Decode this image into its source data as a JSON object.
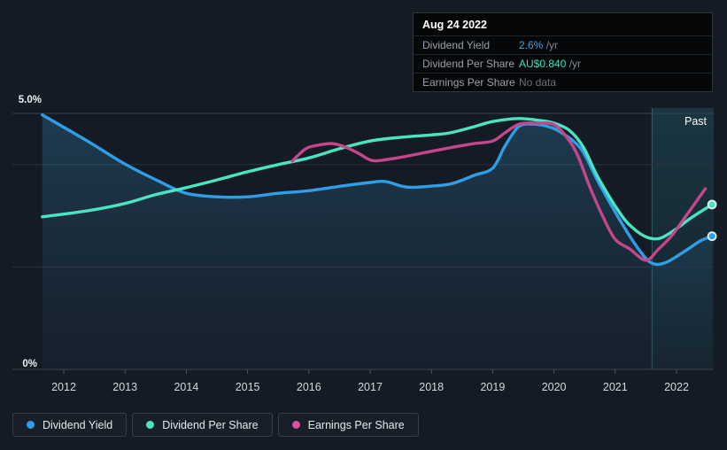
{
  "page": {
    "background": "#151b24"
  },
  "tooltip": {
    "date": "Aug 24 2022",
    "rows": [
      {
        "label": "Dividend Yield",
        "value": "2.6%",
        "suffix": " /yr",
        "value_color": "#3aa5f0"
      },
      {
        "label": "Dividend Per Share",
        "value": "AU$0.840",
        "suffix": " /yr",
        "value_color": "#41e0bd"
      },
      {
        "label": "Earnings Per Share",
        "value": "No data",
        "suffix": "",
        "value_color": "#6a7077"
      }
    ]
  },
  "axis": {
    "y_top_label": "5.0%",
    "y_bottom_label": "0%",
    "years": [
      "2012",
      "2013",
      "2014",
      "2015",
      "2016",
      "2017",
      "2018",
      "2019",
      "2020",
      "2021",
      "2022"
    ],
    "past_label": "Past"
  },
  "legend": [
    {
      "label": "Dividend Yield",
      "color": "#2f9ee8"
    },
    {
      "label": "Dividend Per Share",
      "color": "#4be4c2"
    },
    {
      "label": "Earnings Per Share",
      "color": "#d9509f"
    }
  ],
  "chart_data": {
    "type": "line",
    "title": "Dividend history",
    "x_unit": "year",
    "y_unit": "percent (dividend-yield axis)",
    "xlim": [
      2011.16,
      2022.61
    ],
    "ylim": [
      0,
      5
    ],
    "grid_values": [
      5,
      4,
      2,
      0
    ],
    "past_region_start": 2021.6,
    "legend_position": "bottom-left",
    "series": [
      {
        "name": "Dividend Yield",
        "color": "#2f9ee8",
        "area_fill": true,
        "end_dot": true,
        "points": [
          [
            2011.65,
            4.97
          ],
          [
            2012.4,
            4.45
          ],
          [
            2013,
            4.01
          ],
          [
            2013.56,
            3.67
          ],
          [
            2014,
            3.44
          ],
          [
            2014.5,
            3.37
          ],
          [
            2015,
            3.37
          ],
          [
            2015.5,
            3.44
          ],
          [
            2016,
            3.49
          ],
          [
            2016.53,
            3.58
          ],
          [
            2017,
            3.65
          ],
          [
            2017.25,
            3.67
          ],
          [
            2017.6,
            3.56
          ],
          [
            2018,
            3.58
          ],
          [
            2018.34,
            3.63
          ],
          [
            2018.7,
            3.79
          ],
          [
            2019,
            3.93
          ],
          [
            2019.2,
            4.36
          ],
          [
            2019.42,
            4.74
          ],
          [
            2019.63,
            4.79
          ],
          [
            2019.85,
            4.76
          ],
          [
            2020.1,
            4.64
          ],
          [
            2020.44,
            4.31
          ],
          [
            2020.72,
            3.67
          ],
          [
            2021.09,
            2.89
          ],
          [
            2021.38,
            2.35
          ],
          [
            2021.59,
            2.08
          ],
          [
            2021.81,
            2.08
          ],
          [
            2022.1,
            2.28
          ],
          [
            2022.39,
            2.51
          ],
          [
            2022.58,
            2.6
          ]
        ]
      },
      {
        "name": "Dividend Per Share",
        "color": "#4be4c2",
        "area_fill": false,
        "end_dot": true,
        "points": [
          [
            2011.65,
            2.98
          ],
          [
            2012.4,
            3.1
          ],
          [
            2013,
            3.24
          ],
          [
            2013.49,
            3.41
          ],
          [
            2014,
            3.55
          ],
          [
            2014.5,
            3.7
          ],
          [
            2015,
            3.86
          ],
          [
            2015.5,
            4.0
          ],
          [
            2016,
            4.13
          ],
          [
            2016.5,
            4.31
          ],
          [
            2017,
            4.46
          ],
          [
            2017.47,
            4.53
          ],
          [
            2018,
            4.58
          ],
          [
            2018.3,
            4.62
          ],
          [
            2018.7,
            4.74
          ],
          [
            2019,
            4.84
          ],
          [
            2019.42,
            4.9
          ],
          [
            2019.78,
            4.86
          ],
          [
            2020,
            4.81
          ],
          [
            2020.25,
            4.67
          ],
          [
            2020.48,
            4.34
          ],
          [
            2020.72,
            3.75
          ],
          [
            2021.09,
            3.03
          ],
          [
            2021.3,
            2.75
          ],
          [
            2021.52,
            2.58
          ],
          [
            2021.73,
            2.56
          ],
          [
            2021.98,
            2.73
          ],
          [
            2022.24,
            2.96
          ],
          [
            2022.58,
            3.22
          ]
        ]
      },
      {
        "name": "Earnings Per Share",
        "color": "#c4478c",
        "area_fill": false,
        "end_dot": false,
        "points": [
          [
            2015.73,
            4.07
          ],
          [
            2015.95,
            4.31
          ],
          [
            2016.16,
            4.38
          ],
          [
            2016.38,
            4.41
          ],
          [
            2016.6,
            4.34
          ],
          [
            2016.81,
            4.22
          ],
          [
            2017.03,
            4.08
          ],
          [
            2017.28,
            4.1
          ],
          [
            2017.54,
            4.15
          ],
          [
            2018,
            4.26
          ],
          [
            2018.36,
            4.34
          ],
          [
            2018.7,
            4.41
          ],
          [
            2019,
            4.46
          ],
          [
            2019.2,
            4.62
          ],
          [
            2019.43,
            4.79
          ],
          [
            2019.71,
            4.81
          ],
          [
            2020,
            4.78
          ],
          [
            2020.23,
            4.5
          ],
          [
            2020.39,
            4.17
          ],
          [
            2020.58,
            3.58
          ],
          [
            2020.8,
            2.98
          ],
          [
            2021,
            2.54
          ],
          [
            2021.24,
            2.35
          ],
          [
            2021.5,
            2.13
          ],
          [
            2021.7,
            2.34
          ],
          [
            2021.92,
            2.61
          ],
          [
            2022.18,
            3.04
          ],
          [
            2022.47,
            3.53
          ]
        ]
      }
    ]
  }
}
